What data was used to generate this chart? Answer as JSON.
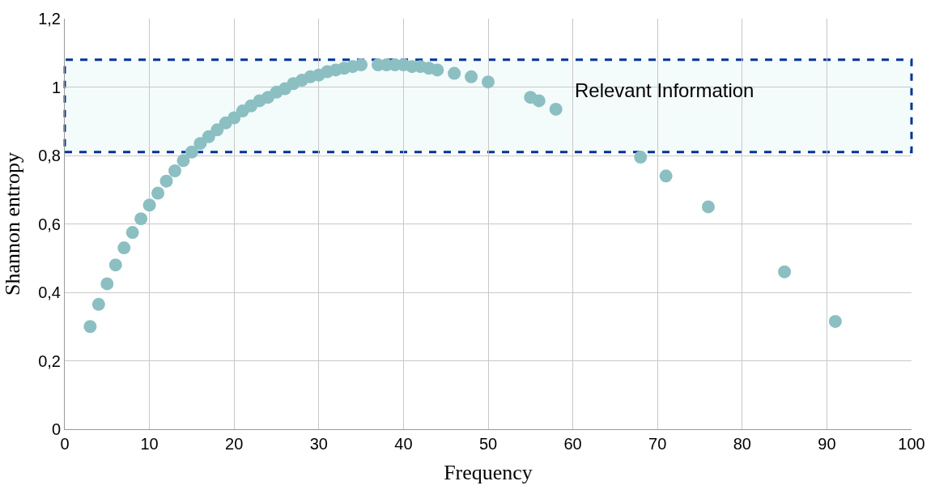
{
  "chart_data": {
    "type": "scatter",
    "xlabel": "Frequency",
    "ylabel": "Shannon entropy",
    "x": [
      3,
      4,
      5,
      6,
      7,
      8,
      9,
      10,
      11,
      12,
      13,
      14,
      15,
      16,
      17,
      18,
      19,
      20,
      21,
      22,
      23,
      24,
      25,
      26,
      27,
      28,
      29,
      30,
      31,
      32,
      33,
      34,
      35,
      37,
      38,
      39,
      40,
      41,
      42,
      43,
      44,
      46,
      48,
      50,
      55,
      56,
      58,
      68,
      71,
      76,
      85,
      91
    ],
    "series": [
      {
        "color": "#8cbfc2",
        "values": [
          0.3,
          0.365,
          0.425,
          0.48,
          0.53,
          0.575,
          0.615,
          0.655,
          0.69,
          0.725,
          0.755,
          0.785,
          0.81,
          0.835,
          0.855,
          0.875,
          0.895,
          0.91,
          0.93,
          0.945,
          0.96,
          0.97,
          0.985,
          0.995,
          1.01,
          1.02,
          1.03,
          1.035,
          1.045,
          1.05,
          1.055,
          1.06,
          1.065,
          1.065,
          1.065,
          1.065,
          1.065,
          1.06,
          1.06,
          1.055,
          1.05,
          1.04,
          1.03,
          1.015,
          0.97,
          0.96,
          0.935,
          0.795,
          0.74,
          0.65,
          0.46,
          0.315
        ]
      }
    ],
    "marker": "circle",
    "xlim": [
      0,
      100
    ],
    "xticks": [
      0,
      10,
      20,
      30,
      40,
      50,
      60,
      70,
      80,
      90,
      100
    ],
    "ylim": [
      0,
      1.2
    ],
    "yticks": [
      {
        "value": 0,
        "label": "0"
      },
      {
        "value": 0.2,
        "label": "0,2"
      },
      {
        "value": 0.4,
        "label": "0,4"
      },
      {
        "value": 0.6,
        "label": "0,6"
      },
      {
        "value": 0.8,
        "label": "0,8"
      },
      {
        "value": 1,
        "label": "1"
      },
      {
        "value": 1.2,
        "label": "1,2"
      }
    ],
    "grid": true,
    "bands": [
      {
        "axis": "y",
        "from": 0.81,
        "to": 1.08,
        "label": "Relevant Information",
        "color": "#003399"
      }
    ]
  }
}
